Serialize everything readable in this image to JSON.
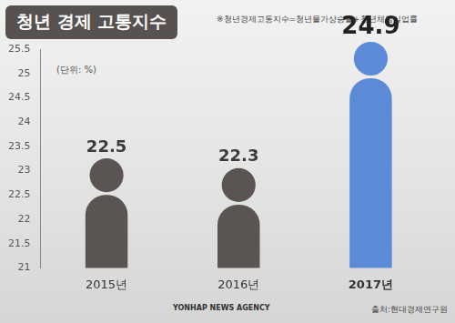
{
  "chart_data": {
    "type": "bar",
    "title": "청년 경제 고통지수",
    "subtitle": "※청년경제고통지수=청년물가상승률+청년체감실업률",
    "ylabel": "(단위: %)",
    "categories": [
      "2015년",
      "2016년",
      "2017년"
    ],
    "values": [
      22.5,
      22.3,
      24.9
    ],
    "colors": [
      "#5a5552",
      "#5a5552",
      "#5b8bd6"
    ],
    "ylim": [
      21,
      25.5
    ],
    "yticks": [
      21,
      21.5,
      22,
      22.5,
      23,
      23.5,
      24,
      24.5,
      25,
      25.5
    ],
    "grid": false,
    "data_labels": true,
    "source": "출처:현대경제연구원",
    "credit": "YONHAP NEWS AGENCY"
  }
}
